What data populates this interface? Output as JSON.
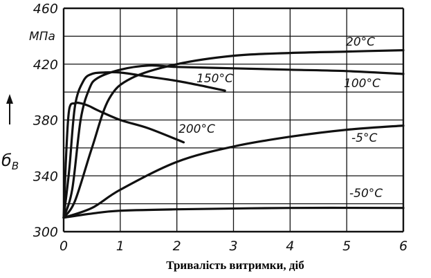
{
  "chart_data": {
    "type": "line",
    "title": "",
    "xlabel": "Тривалість витримки, діб",
    "ylabel": {
      "symbol": "б",
      "subscript": "B"
    },
    "y_unit": "МПа",
    "xlim": [
      0,
      6
    ],
    "ylim": [
      300,
      460
    ],
    "x_ticks": [
      "0",
      "1",
      "2",
      "3",
      "4",
      "5",
      "6"
    ],
    "y_ticks": [
      "300",
      "340",
      "380",
      "420",
      "460"
    ],
    "grid": true,
    "series": [
      {
        "name": "20°C",
        "x": [
          0,
          0.2,
          0.5,
          0.8,
          1.2,
          2.0,
          3.0,
          4.0,
          5.0,
          6.0
        ],
        "y": [
          310,
          322,
          360,
          395,
          410,
          420,
          426,
          428,
          429,
          430
        ]
      },
      {
        "name": "100°C",
        "x": [
          0,
          0.15,
          0.3,
          0.45,
          0.6,
          1.0,
          1.5,
          2.0,
          3.0,
          4.0,
          5.0,
          6.0
        ],
        "y": [
          310,
          330,
          380,
          402,
          410,
          416,
          419,
          418,
          417,
          416,
          415,
          413
        ]
      },
      {
        "name": "150°C",
        "x": [
          0,
          0.1,
          0.2,
          0.35,
          0.5,
          0.7,
          1.0,
          1.5,
          2.0,
          2.5,
          2.85
        ],
        "y": [
          310,
          345,
          390,
          408,
          413,
          414,
          414,
          411,
          408,
          404,
          401
        ]
      },
      {
        "name": "200°C",
        "x": [
          0,
          0.05,
          0.1,
          0.2,
          0.3,
          0.45,
          0.6,
          1.0,
          1.5,
          2.12
        ],
        "y": [
          310,
          360,
          388,
          392,
          392,
          390,
          387,
          380,
          374,
          364
        ]
      },
      {
        "name": "-5°C",
        "x": [
          0,
          0.5,
          1.0,
          2.0,
          3.0,
          4.0,
          5.0,
          6.0
        ],
        "y": [
          310,
          317,
          330,
          350,
          361,
          368,
          373,
          376
        ]
      },
      {
        "name": "-50°C",
        "x": [
          0,
          0.5,
          1.0,
          2.0,
          4.0,
          6.0
        ],
        "y": [
          310,
          313,
          315,
          316,
          317,
          317
        ]
      }
    ]
  }
}
